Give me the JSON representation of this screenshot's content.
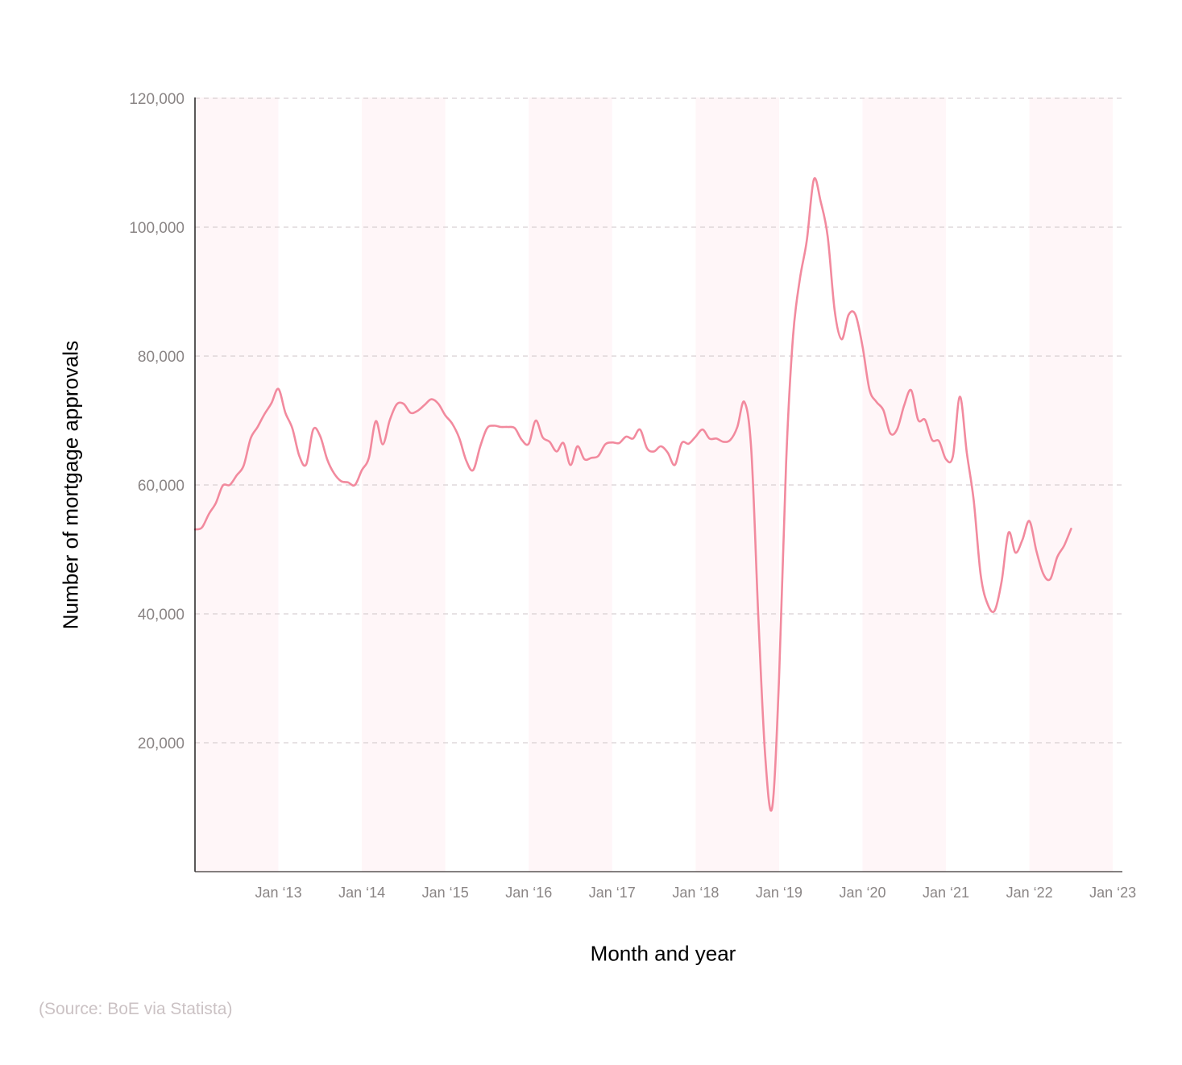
{
  "chart_data": {
    "type": "line",
    "title": "",
    "xlabel": "Month and year",
    "ylabel": "Number of mortgage approvals",
    "ylim": [
      0,
      120000
    ],
    "yticks": [
      20000,
      40000,
      60000,
      80000,
      100000,
      120000
    ],
    "ytick_labels": [
      "20,000",
      "40,000",
      "60,000",
      "80,000",
      "100,000",
      "120,000"
    ],
    "xtick_labels": [
      "Jan ‘13",
      "Jan ‘14",
      "Jan ‘15",
      "Jan ‘16",
      "Jan ‘17",
      "Jan ‘18",
      "Jan ‘19",
      "Jan ‘20",
      "Jan ‘21",
      "Jan ‘22",
      "Jan ‘23"
    ],
    "x_start": "Jan 2012",
    "x_end": "Dec 2022",
    "grid": "horizontal dashed",
    "legend": "none",
    "series": [
      {
        "name": "Mortgage approvals",
        "color": "#f28a9e",
        "values": [
          53100,
          53400,
          55500,
          57200,
          59900,
          60000,
          61500,
          63000,
          67200,
          69000,
          71000,
          72700,
          74900,
          71200,
          68800,
          64500,
          63200,
          68600,
          67600,
          64000,
          61800,
          60600,
          60400,
          60000,
          62300,
          64200,
          69900,
          66300,
          70000,
          72500,
          72600,
          71200,
          71500,
          72400,
          73300,
          72600,
          70800,
          69500,
          67300,
          63800,
          62300,
          65900,
          68800,
          69200,
          69000,
          69000,
          68800,
          67000,
          66400,
          70000,
          67400,
          66700,
          65200,
          66500,
          63100,
          66000,
          64000,
          64200,
          64500,
          66300,
          66600,
          66500,
          67500,
          67200,
          68600,
          65700,
          65200,
          66000,
          65000,
          63100,
          66500,
          66400,
          67500,
          68600,
          67200,
          67200,
          66700,
          67000,
          69000,
          72900,
          65500,
          40000,
          18000,
          9900,
          30000,
          63200,
          83000,
          92000,
          98000,
          107400,
          103900,
          98500,
          87000,
          82600,
          86400,
          86400,
          81500,
          74800,
          72900,
          71600,
          68000,
          68700,
          72400,
          74700,
          70100,
          70100,
          67000,
          66800,
          64000,
          64500,
          73700,
          65000,
          57500,
          46000,
          41500,
          40500,
          45000,
          52600,
          49500,
          51500,
          54400,
          49800,
          46200,
          45400,
          48800,
          50600,
          53200
        ]
      }
    ],
    "background_bands": [
      "2012",
      "2014",
      "2016",
      "2018",
      "2020",
      "2022"
    ]
  },
  "axes": {
    "y_title": "Number of mortgage approvals",
    "x_title": "Month and year"
  },
  "source": "(Source: BoE via Statista)",
  "colors": {
    "line": "#f28a9e",
    "band": "#fff6f8",
    "grid": "#cfc6c8",
    "tick_text": "#8a8585",
    "source_text": "#cbc2c4"
  }
}
